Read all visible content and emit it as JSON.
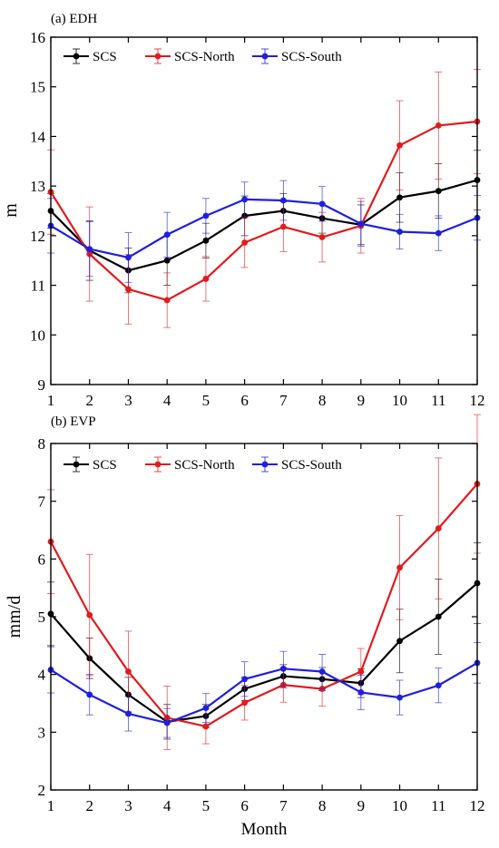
{
  "chart_data": [
    {
      "type": "line",
      "title": "(a)  EDH",
      "xlabel": "",
      "ylabel": "m",
      "x": [
        1,
        2,
        3,
        4,
        5,
        6,
        7,
        8,
        9,
        10,
        11,
        12
      ],
      "xlim": [
        1,
        12
      ],
      "ylim": [
        9,
        16
      ],
      "yticks": [
        9,
        10,
        11,
        12,
        13,
        14,
        15,
        16
      ],
      "grid": false,
      "legend": "top-left",
      "series": [
        {
          "name": "SCS",
          "color": "#000000",
          "values": [
            12.5,
            11.7,
            11.3,
            11.5,
            11.9,
            12.4,
            12.5,
            12.35,
            12.22,
            12.77,
            12.9,
            13.12
          ],
          "errors": [
            0.35,
            0.6,
            0.45,
            0.5,
            0.35,
            0.4,
            0.35,
            0.3,
            0.4,
            0.5,
            0.55,
            0.6
          ]
        },
        {
          "name": "SCS-North",
          "color": "#e41a1c",
          "values": [
            12.88,
            11.63,
            10.92,
            10.7,
            11.13,
            11.86,
            12.18,
            11.97,
            12.2,
            13.82,
            14.22,
            14.3
          ],
          "errors": [
            0.85,
            0.95,
            0.7,
            0.55,
            0.45,
            0.5,
            0.5,
            0.5,
            0.55,
            0.9,
            1.08,
            1.05
          ]
        },
        {
          "name": "SCS-South",
          "color": "#1f1fe0",
          "values": [
            12.2,
            11.73,
            11.56,
            12.02,
            12.4,
            12.73,
            12.71,
            12.64,
            12.24,
            12.08,
            12.05,
            12.36
          ],
          "errors": [
            0.55,
            0.55,
            0.5,
            0.45,
            0.35,
            0.35,
            0.4,
            0.35,
            0.45,
            0.35,
            0.35,
            0.45
          ]
        }
      ]
    },
    {
      "type": "line",
      "title": "(b) EVP",
      "xlabel": "Month",
      "ylabel": "mm/d",
      "x": [
        1,
        2,
        3,
        4,
        5,
        6,
        7,
        8,
        9,
        10,
        11,
        12
      ],
      "xlim": [
        1,
        12
      ],
      "ylim": [
        2,
        8
      ],
      "yticks": [
        2,
        3,
        4,
        5,
        6,
        7,
        8
      ],
      "grid": false,
      "legend": "top-left",
      "series": [
        {
          "name": "SCS",
          "color": "#000000",
          "values": [
            5.05,
            4.28,
            3.65,
            3.18,
            3.28,
            3.75,
            3.97,
            3.92,
            3.85,
            4.58,
            5.0,
            5.58
          ],
          "errors": [
            0.55,
            0.35,
            0.3,
            0.3,
            0.2,
            0.2,
            0.2,
            0.2,
            0.25,
            0.55,
            0.65,
            0.7
          ]
        },
        {
          "name": "SCS-North",
          "color": "#e41a1c",
          "values": [
            6.3,
            5.03,
            4.05,
            3.25,
            3.1,
            3.51,
            3.82,
            3.75,
            4.05,
            5.85,
            6.53,
            7.3
          ],
          "errors": [
            0.9,
            1.05,
            0.7,
            0.55,
            0.3,
            0.3,
            0.3,
            0.3,
            0.4,
            0.9,
            1.22,
            1.2
          ]
        },
        {
          "name": "SCS-South",
          "color": "#1f1fe0",
          "values": [
            4.08,
            3.65,
            3.32,
            3.16,
            3.42,
            3.92,
            4.1,
            4.05,
            3.69,
            3.6,
            3.81,
            4.2
          ],
          "errors": [
            0.4,
            0.35,
            0.3,
            0.25,
            0.25,
            0.3,
            0.3,
            0.3,
            0.3,
            0.3,
            0.3,
            0.35
          ]
        }
      ]
    }
  ]
}
